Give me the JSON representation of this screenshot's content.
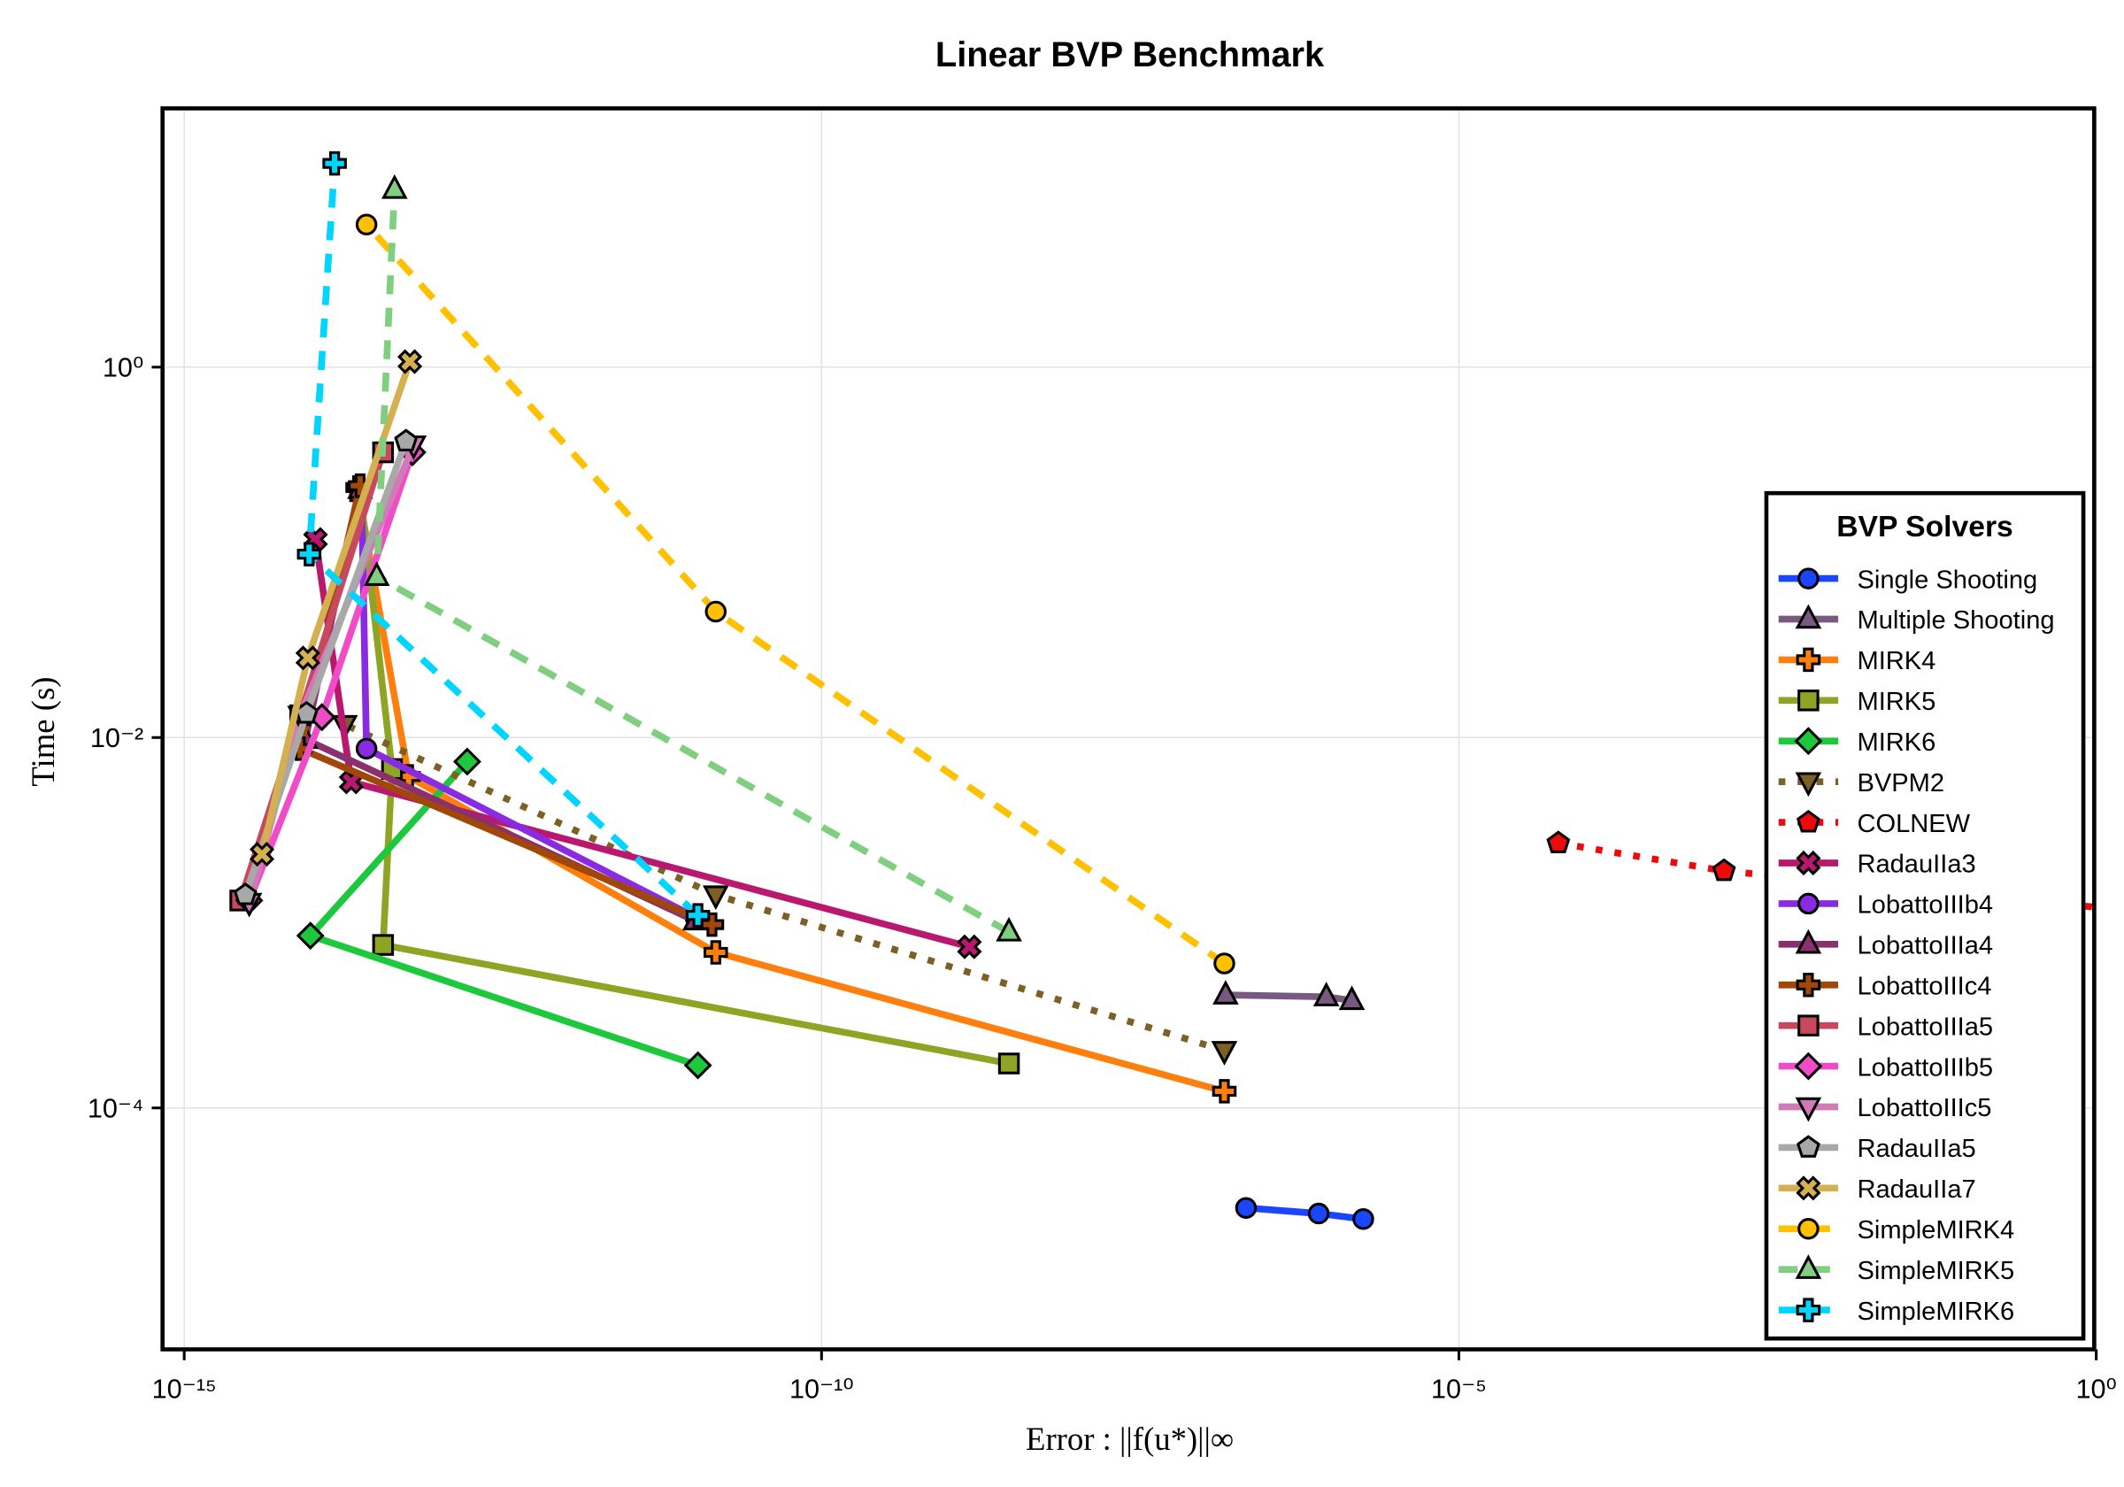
{
  "chart_data": {
    "type": "line",
    "title": "Linear BVP Benchmark",
    "xlabel": "Error : ||f(u*)||∞",
    "ylabel": "Time (s)",
    "xscale": "log10",
    "yscale": "log10",
    "xlim_log10": [
      -15.17,
      0
    ],
    "ylim_log10": [
      -5.3,
      1.4
    ],
    "x_ticks_log10": [
      -15,
      -10,
      -5,
      0
    ],
    "x_tick_labels": [
      "10⁻¹⁵",
      "10⁻¹⁰",
      "10⁻⁵",
      "10⁰"
    ],
    "y_ticks_log10": [
      0,
      -2,
      -4
    ],
    "y_tick_labels": [
      "10⁰",
      "10⁻²",
      "10⁻⁴"
    ],
    "grid": true,
    "legend": {
      "title": "BVP Solvers",
      "placement": "right"
    },
    "point_format": "[log10(error), log10(time)]",
    "series": [
      {
        "name": "Single Shooting",
        "color": "#1a46ff",
        "style": "solid",
        "marker": "circle",
        "points": [
          [
            -6.67,
            -4.54
          ],
          [
            -6.1,
            -4.57
          ],
          [
            -5.75,
            -4.6
          ]
        ]
      },
      {
        "name": "Multiple Shooting",
        "color": "#785a80",
        "style": "solid",
        "marker": "triangle-up",
        "points": [
          [
            -6.83,
            -3.39
          ],
          [
            -6.04,
            -3.4
          ],
          [
            -5.84,
            -3.42
          ]
        ]
      },
      {
        "name": "MIRK4",
        "color": "#ff7f0e",
        "style": "solid",
        "marker": "plus",
        "points": [
          [
            -6.84,
            -3.91
          ],
          [
            -10.83,
            -3.16
          ],
          [
            -13.24,
            -2.21
          ],
          [
            -13.64,
            -0.65
          ]
        ]
      },
      {
        "name": "MIRK5",
        "color": "#8ea424",
        "style": "solid",
        "marker": "square",
        "points": [
          [
            -8.53,
            -3.76
          ],
          [
            -13.44,
            -3.12
          ],
          [
            -13.37,
            -2.17
          ],
          [
            -13.62,
            -0.67
          ]
        ]
      },
      {
        "name": "MIRK6",
        "color": "#1ec83c",
        "style": "solid",
        "marker": "diamond",
        "points": [
          [
            -10.97,
            -3.77
          ],
          [
            -14.01,
            -3.07
          ],
          [
            -12.78,
            -2.13
          ]
        ]
      },
      {
        "name": "BVPM2",
        "color": "#7c6024",
        "style": "dotted",
        "marker": "triangle-down",
        "points": [
          [
            -6.84,
            -3.69
          ],
          [
            -10.83,
            -2.85
          ],
          [
            -13.74,
            -1.93
          ]
        ]
      },
      {
        "name": "COLNEW",
        "color": "#ee0a0a",
        "style": "dotted",
        "marker": "pentagon",
        "points": [
          [
            -4.22,
            -2.57
          ],
          [
            -2.92,
            -2.72
          ],
          [
            0.5,
            -2.95
          ]
        ]
      },
      {
        "name": "RadauIIa3",
        "color": "#b8196f",
        "style": "solid",
        "marker": "x",
        "points": [
          [
            -8.84,
            -3.13
          ],
          [
            -13.69,
            -2.24
          ],
          [
            -13.97,
            -0.93
          ]
        ]
      },
      {
        "name": "LobattoIIIb4",
        "color": "#8a2be2",
        "style": "solid",
        "marker": "circle",
        "points": [
          [
            -10.99,
            -2.97
          ],
          [
            -13.57,
            -2.06
          ],
          [
            -13.61,
            -0.67
          ]
        ]
      },
      {
        "name": "LobattoIIIa4",
        "color": "#8b2f6e",
        "style": "solid",
        "marker": "triangle-up",
        "points": [
          [
            -10.99,
            -2.99
          ],
          [
            -14.05,
            -2.01
          ],
          [
            -13.62,
            -0.66
          ]
        ]
      },
      {
        "name": "LobattoIIIc4",
        "color": "#a0480a",
        "style": "solid",
        "marker": "plus",
        "points": [
          [
            -10.86,
            -3.01
          ],
          [
            -14.09,
            -2.06
          ],
          [
            -13.62,
            -0.64
          ]
        ]
      },
      {
        "name": "LobattoIIIa5",
        "color": "#c8485e",
        "style": "solid",
        "marker": "square",
        "points": [
          [
            -14.56,
            -2.88
          ],
          [
            -14.09,
            -1.88
          ],
          [
            -13.44,
            -0.46
          ]
        ]
      },
      {
        "name": "LobattoIIIb5",
        "color": "#f04cc8",
        "style": "solid",
        "marker": "diamond",
        "points": [
          [
            -14.49,
            -2.88
          ],
          [
            -13.92,
            -1.89
          ],
          [
            -13.21,
            -0.46
          ]
        ]
      },
      {
        "name": "LobattoIIIc5",
        "color": "#d07ab8",
        "style": "solid",
        "marker": "triangle-down",
        "points": [
          [
            -14.49,
            -2.89
          ],
          [
            -14.09,
            -1.88
          ],
          [
            -13.2,
            -0.42
          ]
        ]
      },
      {
        "name": "RadauIIa5",
        "color": "#a8a8a8",
        "style": "solid",
        "marker": "pentagon",
        "points": [
          [
            -14.52,
            -2.85
          ],
          [
            -14.04,
            -1.87
          ],
          [
            -13.26,
            -0.4
          ]
        ]
      },
      {
        "name": "RadauIIa7",
        "color": "#d4b050",
        "style": "solid",
        "marker": "x",
        "points": [
          [
            -14.39,
            -2.63
          ],
          [
            -14.03,
            -1.57
          ],
          [
            -13.23,
            0.03
          ]
        ]
      },
      {
        "name": "SimpleMIRK4",
        "color": "#ffc000",
        "style": "dashed",
        "marker": "circle",
        "points": [
          [
            -6.84,
            -3.22
          ],
          [
            -10.83,
            -1.32
          ],
          [
            -13.57,
            0.77
          ]
        ]
      },
      {
        "name": "SimpleMIRK5",
        "color": "#80cf80",
        "style": "dashed",
        "marker": "triangle-up",
        "points": [
          [
            -8.53,
            -3.05
          ],
          [
            -13.49,
            -1.13
          ],
          [
            -13.35,
            0.96
          ]
        ]
      },
      {
        "name": "SimpleMIRK6",
        "color": "#00d5ff",
        "style": "dashed",
        "marker": "plus",
        "points": [
          [
            -10.97,
            -2.96
          ],
          [
            -14.02,
            -1.01
          ],
          [
            -13.82,
            1.1
          ]
        ]
      }
    ]
  }
}
